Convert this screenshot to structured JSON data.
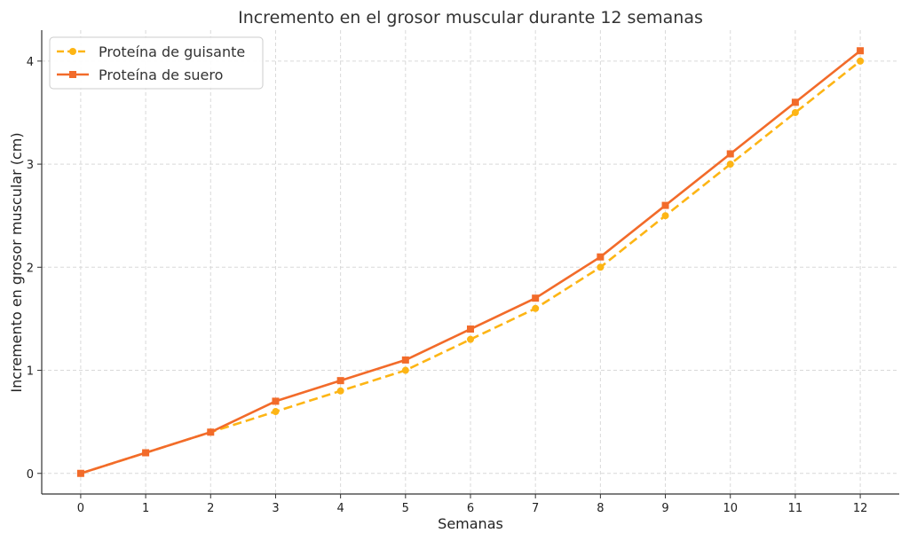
{
  "chart_data": {
    "type": "line",
    "title": "Incremento en el grosor muscular durante 12 semanas",
    "xlabel": "Semanas",
    "ylabel": "Incremento en grosor muscular (cm)",
    "x": [
      0,
      1,
      2,
      3,
      4,
      5,
      6,
      7,
      8,
      9,
      10,
      11,
      12
    ],
    "xlim": [
      -0.6,
      12.6
    ],
    "ylim": [
      -0.2,
      4.3
    ],
    "xticks": [
      "0",
      "1",
      "2",
      "3",
      "4",
      "5",
      "6",
      "7",
      "8",
      "9",
      "10",
      "11",
      "12"
    ],
    "yticks": [
      0,
      1,
      2,
      3,
      4
    ],
    "grid": true,
    "legend_position": "top-left",
    "series": [
      {
        "name": "Proteína de guisante",
        "values": [
          0,
          0.2,
          0.4,
          0.6,
          0.8,
          1.0,
          1.3,
          1.6,
          2.0,
          2.5,
          3.0,
          3.5,
          4.0
        ],
        "color": "#FDB515",
        "line_style": "dashed",
        "marker": "circle"
      },
      {
        "name": "Proteína de suero",
        "values": [
          0,
          0.2,
          0.4,
          0.7,
          0.9,
          1.1,
          1.4,
          1.7,
          2.1,
          2.6,
          3.1,
          3.6,
          4.1
        ],
        "color": "#F26B2A",
        "line_style": "solid",
        "marker": "square"
      }
    ]
  }
}
